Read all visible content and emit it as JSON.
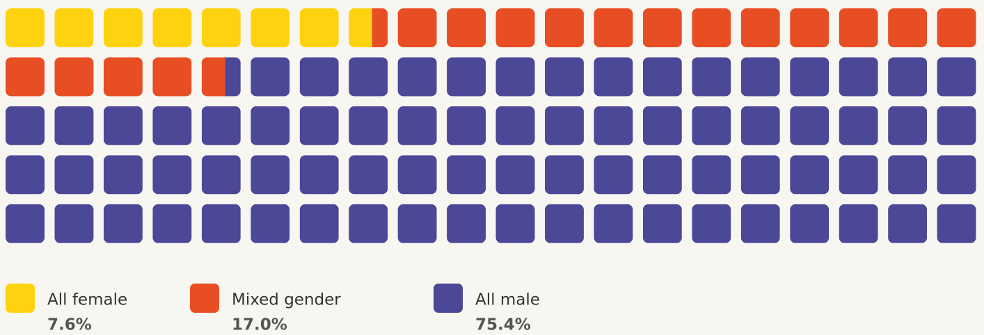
{
  "chart_data": {
    "type": "waffle",
    "series": [
      {
        "name": "All female",
        "color": "#FFD20F",
        "values": [
          7.6
        ],
        "value_labels": [
          "7.6%"
        ]
      },
      {
        "name": "Mixed gender",
        "color": "#E84E24",
        "values": [
          17.0
        ],
        "value_labels": [
          "17.0%"
        ]
      },
      {
        "name": "All male",
        "color": "#4B4897",
        "values": [
          75.4
        ],
        "value_labels": [
          "75.4%"
        ]
      }
    ]
  }
}
